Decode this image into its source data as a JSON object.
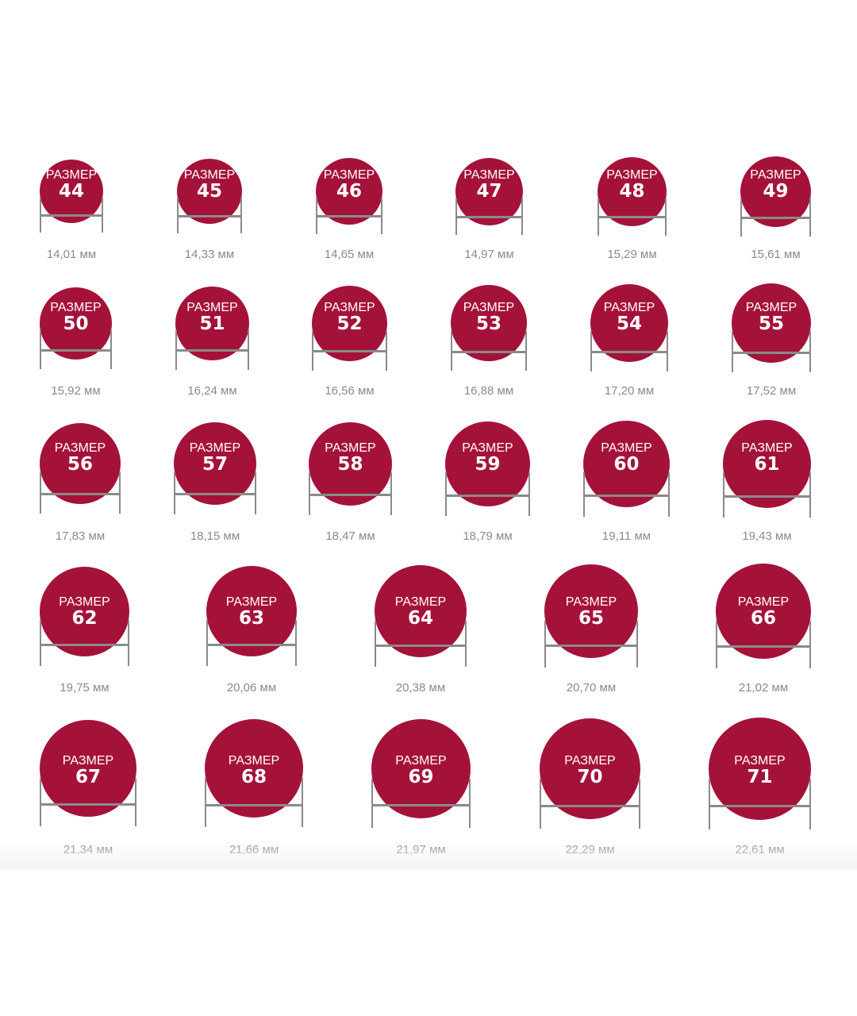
{
  "colors": {
    "circle_fill": "#a4123a",
    "circle_text": "#ffffff",
    "ruler": "#8a8a8a",
    "label_text": "#8a8a8a",
    "background": "#ffffff"
  },
  "size_word": "РАЗМЕР",
  "unit": "мм",
  "rings": [
    {
      "size": "44",
      "diameter": "14,01 мм"
    },
    {
      "size": "45",
      "diameter": "14,33 мм"
    },
    {
      "size": "46",
      "diameter": "14,65 мм"
    },
    {
      "size": "47",
      "diameter": "14,97 мм"
    },
    {
      "size": "48",
      "diameter": "15,29 мм"
    },
    {
      "size": "49",
      "diameter": "15,61 мм"
    },
    {
      "size": "50",
      "diameter": "15,92 мм"
    },
    {
      "size": "51",
      "diameter": "16,24 мм"
    },
    {
      "size": "52",
      "diameter": "16,56 мм"
    },
    {
      "size": "53",
      "diameter": "16,88 мм"
    },
    {
      "size": "54",
      "diameter": "17,20 мм"
    },
    {
      "size": "55",
      "diameter": "17,52 мм"
    },
    {
      "size": "56",
      "diameter": "17,83 мм"
    },
    {
      "size": "57",
      "diameter": "18,15 мм"
    },
    {
      "size": "58",
      "diameter": "18,47 мм"
    },
    {
      "size": "59",
      "diameter": "18,79 мм"
    },
    {
      "size": "60",
      "diameter": "19,11 мм"
    },
    {
      "size": "61",
      "diameter": "19,43 мм"
    },
    {
      "size": "62",
      "diameter": "19,75 мм"
    },
    {
      "size": "63",
      "diameter": "20,06 мм"
    },
    {
      "size": "64",
      "diameter": "20,38 мм"
    },
    {
      "size": "65",
      "diameter": "20,70 мм"
    },
    {
      "size": "66",
      "diameter": "21,02 мм"
    },
    {
      "size": "67",
      "diameter": "21,34 мм"
    },
    {
      "size": "68",
      "diameter": "21,66 мм"
    },
    {
      "size": "69",
      "diameter": "21,97 мм"
    },
    {
      "size": "70",
      "diameter": "22,29 мм"
    },
    {
      "size": "71",
      "diameter": "22,61 мм"
    }
  ]
}
